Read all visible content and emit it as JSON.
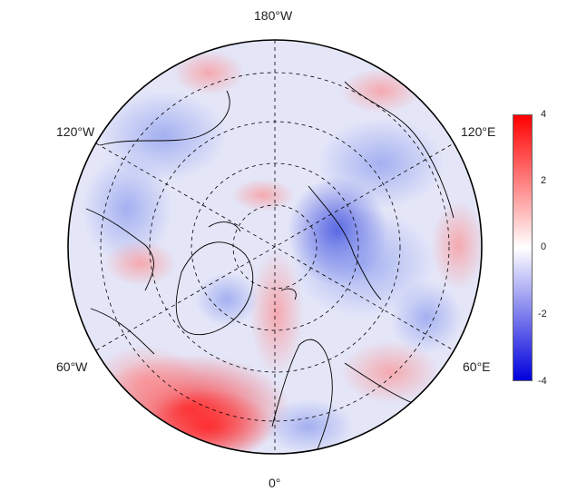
{
  "map": {
    "projection": "north-polar-stereographic",
    "colormap": {
      "low": "#0000dd",
      "mid": "#ffffff",
      "high": "#ff0000"
    },
    "longitude_labels": [
      {
        "key": "lon_180W",
        "text": "180°W"
      },
      {
        "key": "lon_120W",
        "text": "120°W"
      },
      {
        "key": "lon_120E",
        "text": "120°E"
      },
      {
        "key": "lon_60W",
        "text": "60°W"
      },
      {
        "key": "lon_60E",
        "text": "60°E"
      },
      {
        "key": "lon_0",
        "text": "0°"
      }
    ],
    "graticule": {
      "style": "dashed",
      "latitude_circles": 4,
      "meridian_spokes": 6
    }
  },
  "colorbar": {
    "min": -4,
    "max": 4,
    "ticks": [
      "4",
      "2",
      "0",
      "-2",
      "-4"
    ]
  }
}
